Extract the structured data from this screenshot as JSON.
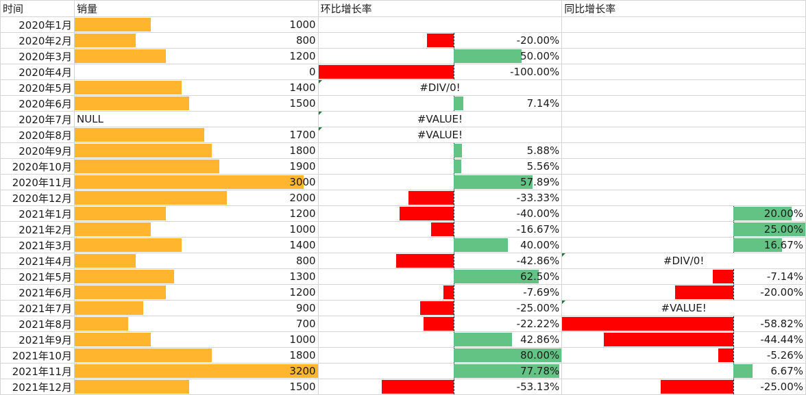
{
  "headers": {
    "time": "时间",
    "sales": "销量",
    "mom": "环比增长率",
    "yoy": "同比增长率"
  },
  "colors": {
    "sales_bar": "#ffb52e",
    "positive_bar": "#63c384",
    "negative_bar": "#ff0000"
  },
  "scales": {
    "sales_max": 3200,
    "mom_min": -100,
    "mom_max": 80,
    "yoy_min": -58.82,
    "yoy_max": 25
  },
  "rows": [
    {
      "month": "2020年1月",
      "sales": "1000",
      "sales_val": 1000,
      "mom": "",
      "mom_val": null,
      "yoy": "",
      "yoy_val": null
    },
    {
      "month": "2020年2月",
      "sales": "800",
      "sales_val": 800,
      "mom": "-20.00%",
      "mom_val": -20,
      "yoy": "",
      "yoy_val": null
    },
    {
      "month": "2020年3月",
      "sales": "1200",
      "sales_val": 1200,
      "mom": "50.00%",
      "mom_val": 50,
      "yoy": "",
      "yoy_val": null
    },
    {
      "month": "2020年4月",
      "sales": "0",
      "sales_val": 0,
      "mom": "-100.00%",
      "mom_val": -100,
      "yoy": "",
      "yoy_val": null
    },
    {
      "month": "2020年5月",
      "sales": "1400",
      "sales_val": 1400,
      "mom": "#DIV/0!",
      "mom_val": null,
      "yoy": "",
      "yoy_val": null
    },
    {
      "month": "2020年6月",
      "sales": "1500",
      "sales_val": 1500,
      "mom": "7.14%",
      "mom_val": 7.14,
      "yoy": "",
      "yoy_val": null
    },
    {
      "month": "2020年7月",
      "sales": "NULL",
      "sales_val": null,
      "mom": "#VALUE!",
      "mom_val": null,
      "yoy": "",
      "yoy_val": null
    },
    {
      "month": "2020年8月",
      "sales": "1700",
      "sales_val": 1700,
      "mom": "#VALUE!",
      "mom_val": null,
      "yoy": "",
      "yoy_val": null
    },
    {
      "month": "2020年9月",
      "sales": "1800",
      "sales_val": 1800,
      "mom": "5.88%",
      "mom_val": 5.88,
      "yoy": "",
      "yoy_val": null
    },
    {
      "month": "2020年10月",
      "sales": "1900",
      "sales_val": 1900,
      "mom": "5.56%",
      "mom_val": 5.56,
      "yoy": "",
      "yoy_val": null
    },
    {
      "month": "2020年11月",
      "sales": "3000",
      "sales_val": 3000,
      "mom": "57.89%",
      "mom_val": 57.89,
      "yoy": "",
      "yoy_val": null
    },
    {
      "month": "2020年12月",
      "sales": "2000",
      "sales_val": 2000,
      "mom": "-33.33%",
      "mom_val": -33.33,
      "yoy": "",
      "yoy_val": null
    },
    {
      "month": "2021年1月",
      "sales": "1200",
      "sales_val": 1200,
      "mom": "-40.00%",
      "mom_val": -40,
      "yoy": "20.00%",
      "yoy_val": 20
    },
    {
      "month": "2021年2月",
      "sales": "1000",
      "sales_val": 1000,
      "mom": "-16.67%",
      "mom_val": -16.67,
      "yoy": "25.00%",
      "yoy_val": 25
    },
    {
      "month": "2021年3月",
      "sales": "1400",
      "sales_val": 1400,
      "mom": "40.00%",
      "mom_val": 40,
      "yoy": "16.67%",
      "yoy_val": 16.67
    },
    {
      "month": "2021年4月",
      "sales": "800",
      "sales_val": 800,
      "mom": "-42.86%",
      "mom_val": -42.86,
      "yoy": "#DIV/0!",
      "yoy_val": null
    },
    {
      "month": "2021年5月",
      "sales": "1300",
      "sales_val": 1300,
      "mom": "62.50%",
      "mom_val": 62.5,
      "yoy": "-7.14%",
      "yoy_val": -7.14
    },
    {
      "month": "2021年6月",
      "sales": "1200",
      "sales_val": 1200,
      "mom": "-7.69%",
      "mom_val": -7.69,
      "yoy": "-20.00%",
      "yoy_val": -20
    },
    {
      "month": "2021年7月",
      "sales": "900",
      "sales_val": 900,
      "mom": "-25.00%",
      "mom_val": -25,
      "yoy": "#VALUE!",
      "yoy_val": null
    },
    {
      "month": "2021年8月",
      "sales": "700",
      "sales_val": 700,
      "mom": "-22.22%",
      "mom_val": -22.22,
      "yoy": "-58.82%",
      "yoy_val": -58.82
    },
    {
      "month": "2021年9月",
      "sales": "1000",
      "sales_val": 1000,
      "mom": "42.86%",
      "mom_val": 42.86,
      "yoy": "-44.44%",
      "yoy_val": -44.44
    },
    {
      "month": "2021年10月",
      "sales": "1800",
      "sales_val": 1800,
      "mom": "80.00%",
      "mom_val": 80,
      "yoy": "-5.26%",
      "yoy_val": -5.26
    },
    {
      "month": "2021年11月",
      "sales": "3200",
      "sales_val": 3200,
      "mom": "77.78%",
      "mom_val": 77.78,
      "yoy": "6.67%",
      "yoy_val": 6.67
    },
    {
      "month": "2021年12月",
      "sales": "1500",
      "sales_val": 1500,
      "mom": "-53.13%",
      "mom_val": -53.13,
      "yoy": "-25.00%",
      "yoy_val": -25
    }
  ]
}
